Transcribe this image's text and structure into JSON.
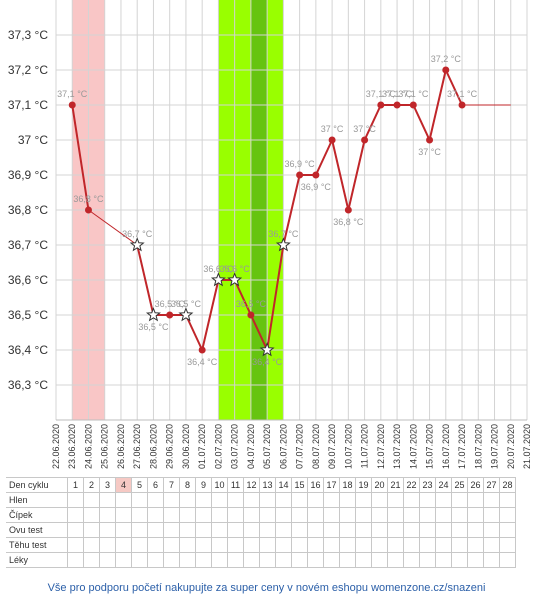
{
  "chart_data": {
    "type": "line",
    "title": "",
    "xlabel": "",
    "ylabel": "",
    "ylim": [
      36.2,
      37.4
    ],
    "y_ticks": [
      "36,3 °C",
      "36,4 °C",
      "36,5 °C",
      "36,6 °C",
      "36,7 °C",
      "36,8 °C",
      "36,9 °C",
      "37 °C",
      "37,1 °C",
      "37,2 °C",
      "37,3 °C"
    ],
    "x_ticks": [
      "22.06.2020",
      "23.06.2020",
      "24.06.2020",
      "25.06.2020",
      "26.06.2020",
      "27.06.2020",
      "28.06.2020",
      "29.06.2020",
      "30.06.2020",
      "01.07.2020",
      "02.07.2020",
      "03.07.2020",
      "04.07.2020",
      "05.07.2020",
      "06.07.2020",
      "07.07.2020",
      "08.07.2020",
      "09.07.2020",
      "10.07.2020",
      "11.07.2020",
      "12.07.2020",
      "13.07.2020",
      "14.07.2020",
      "15.07.2020",
      "16.07.2020",
      "17.07.2020",
      "18.07.2020",
      "19.07.2020",
      "20.07.2020",
      "21.07.2020"
    ],
    "series": [
      {
        "color": "#c0262a",
        "points": [
          {
            "x": "23.06.2020",
            "y": 37.1,
            "label": "37,1 °C",
            "marker": "dot"
          },
          {
            "x": "24.06.2020",
            "y": 36.8,
            "label": "36,8 °C",
            "marker": "dot"
          },
          {
            "x": "27.06.2020",
            "y": 36.7,
            "label": "36,7 °C",
            "marker": "star"
          },
          {
            "x": "28.06.2020",
            "y": 36.5,
            "label": "36,5 °C",
            "marker": "star"
          },
          {
            "x": "29.06.2020",
            "y": 36.5,
            "label": "36,5 °C",
            "marker": "dot"
          },
          {
            "x": "30.06.2020",
            "y": 36.5,
            "label": "36,5 °C",
            "marker": "star"
          },
          {
            "x": "01.07.2020",
            "y": 36.4,
            "label": "36,4 °C",
            "marker": "dot"
          },
          {
            "x": "02.07.2020",
            "y": 36.6,
            "label": "36,6 °C",
            "marker": "star"
          },
          {
            "x": "03.07.2020",
            "y": 36.6,
            "label": "36,6 °C",
            "marker": "star"
          },
          {
            "x": "04.07.2020",
            "y": 36.5,
            "label": "36,5 °C",
            "marker": "dot"
          },
          {
            "x": "05.07.2020",
            "y": 36.4,
            "label": "36,4 °C",
            "marker": "star"
          },
          {
            "x": "06.07.2020",
            "y": 36.7,
            "label": "36,7 °C",
            "marker": "star"
          },
          {
            "x": "07.07.2020",
            "y": 36.9,
            "label": "36,9 °C",
            "marker": "dot"
          },
          {
            "x": "08.07.2020",
            "y": 36.9,
            "label": "36,9 °C",
            "marker": "dot"
          },
          {
            "x": "09.07.2020",
            "y": 37.0,
            "label": "37 °C",
            "marker": "dot"
          },
          {
            "x": "10.07.2020",
            "y": 36.8,
            "label": "36,8 °C",
            "marker": "dot"
          },
          {
            "x": "11.07.2020",
            "y": 37.0,
            "label": "37 °C",
            "marker": "dot"
          },
          {
            "x": "12.07.2020",
            "y": 37.1,
            "label": "37,1 °C",
            "marker": "dot"
          },
          {
            "x": "13.07.2020",
            "y": 37.1,
            "label": "37,1 °C",
            "marker": "dot"
          },
          {
            "x": "14.07.2020",
            "y": 37.1,
            "label": "37,1 °C",
            "marker": "dot"
          },
          {
            "x": "15.07.2020",
            "y": 37.0,
            "label": "37 °C",
            "marker": "dot"
          },
          {
            "x": "16.07.2020",
            "y": 37.2,
            "label": "37,2 °C",
            "marker": "dot"
          },
          {
            "x": "17.07.2020",
            "y": 37.1,
            "label": "37,1 °C",
            "marker": "dot"
          }
        ],
        "projection": {
          "x": "20.07.2020",
          "y": 37.1
        }
      }
    ],
    "bands": [
      {
        "from": "23.06.2020",
        "to": "25.06.2020",
        "color": "#f9c6c6"
      },
      {
        "from": "02.07.2020",
        "to": "06.07.2020",
        "color": "#99ff00"
      },
      {
        "from": "04.07.2020",
        "to": "05.07.2020",
        "color": "#66c410"
      }
    ],
    "grid": true
  },
  "table": {
    "row_labels": [
      "Den cyklu",
      "Hlen",
      "Čípek",
      "Ovu test",
      "Těhu test",
      "Léky"
    ],
    "days": [
      "1",
      "2",
      "3",
      "4",
      "5",
      "6",
      "7",
      "8",
      "9",
      "10",
      "11",
      "12",
      "13",
      "14",
      "15",
      "16",
      "17",
      "18",
      "19",
      "20",
      "21",
      "22",
      "23",
      "24",
      "25",
      "26",
      "27",
      "28"
    ],
    "highlight_day": "4",
    "highlight_color": "#f6c9c4"
  },
  "footer": {
    "text": "Vše pro podporu početí nakupujte za super ceny v novém eshopu womenzone.cz/snazeni"
  }
}
